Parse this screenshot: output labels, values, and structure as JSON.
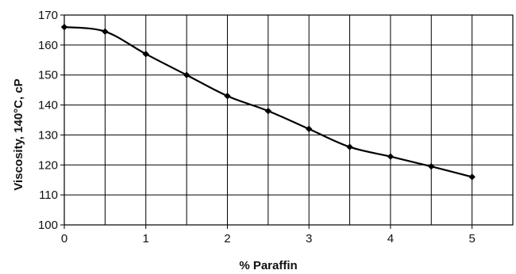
{
  "chart_data": {
    "type": "line",
    "title": "",
    "xlabel": "% Paraffin",
    "ylabel": "Viscosity, 140°C, cP",
    "xlim": [
      0,
      5.5
    ],
    "ylim": [
      100,
      170
    ],
    "xticks": [
      0,
      1,
      2,
      3,
      4,
      5
    ],
    "yticks": [
      100,
      110,
      120,
      130,
      140,
      150,
      160,
      170
    ],
    "grid": true,
    "legend": "none",
    "series": [
      {
        "x": [
          0,
          0.5,
          1,
          1.5,
          2,
          2.5,
          3,
          3.5,
          4,
          4.5,
          5
        ],
        "y": [
          166,
          164.5,
          157,
          150,
          143,
          138,
          132,
          126,
          122.8,
          119.5,
          116
        ],
        "color": "#000000",
        "marker": "diamond"
      }
    ]
  }
}
